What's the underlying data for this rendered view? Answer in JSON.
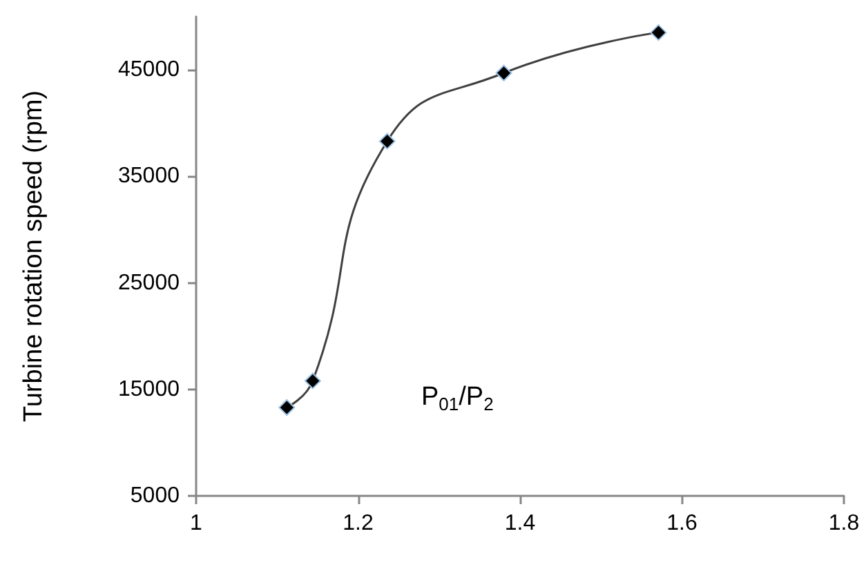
{
  "chart_data": {
    "type": "line",
    "xlabel": "P$_{01}$/P$_{2}$",
    "ylabel": "Turbine rotation speed (rpm)",
    "series": [
      {
        "color": "#000000",
        "x": [
          1.112,
          1.144,
          1.236,
          1.38,
          1.571
        ],
        "values": [
          13300,
          15800,
          38300,
          44700,
          48500
        ]
      }
    ],
    "xlim": [
      1,
      1.8
    ],
    "xticks": [
      1,
      1.2,
      1.4,
      1.6,
      1.8
    ],
    "ylim": [
      5000,
      50000
    ],
    "yticks": [
      5000,
      15000,
      25000,
      35000,
      45000
    ],
    "grid": false,
    "marker": "diamond",
    "line_style": "solid"
  }
}
